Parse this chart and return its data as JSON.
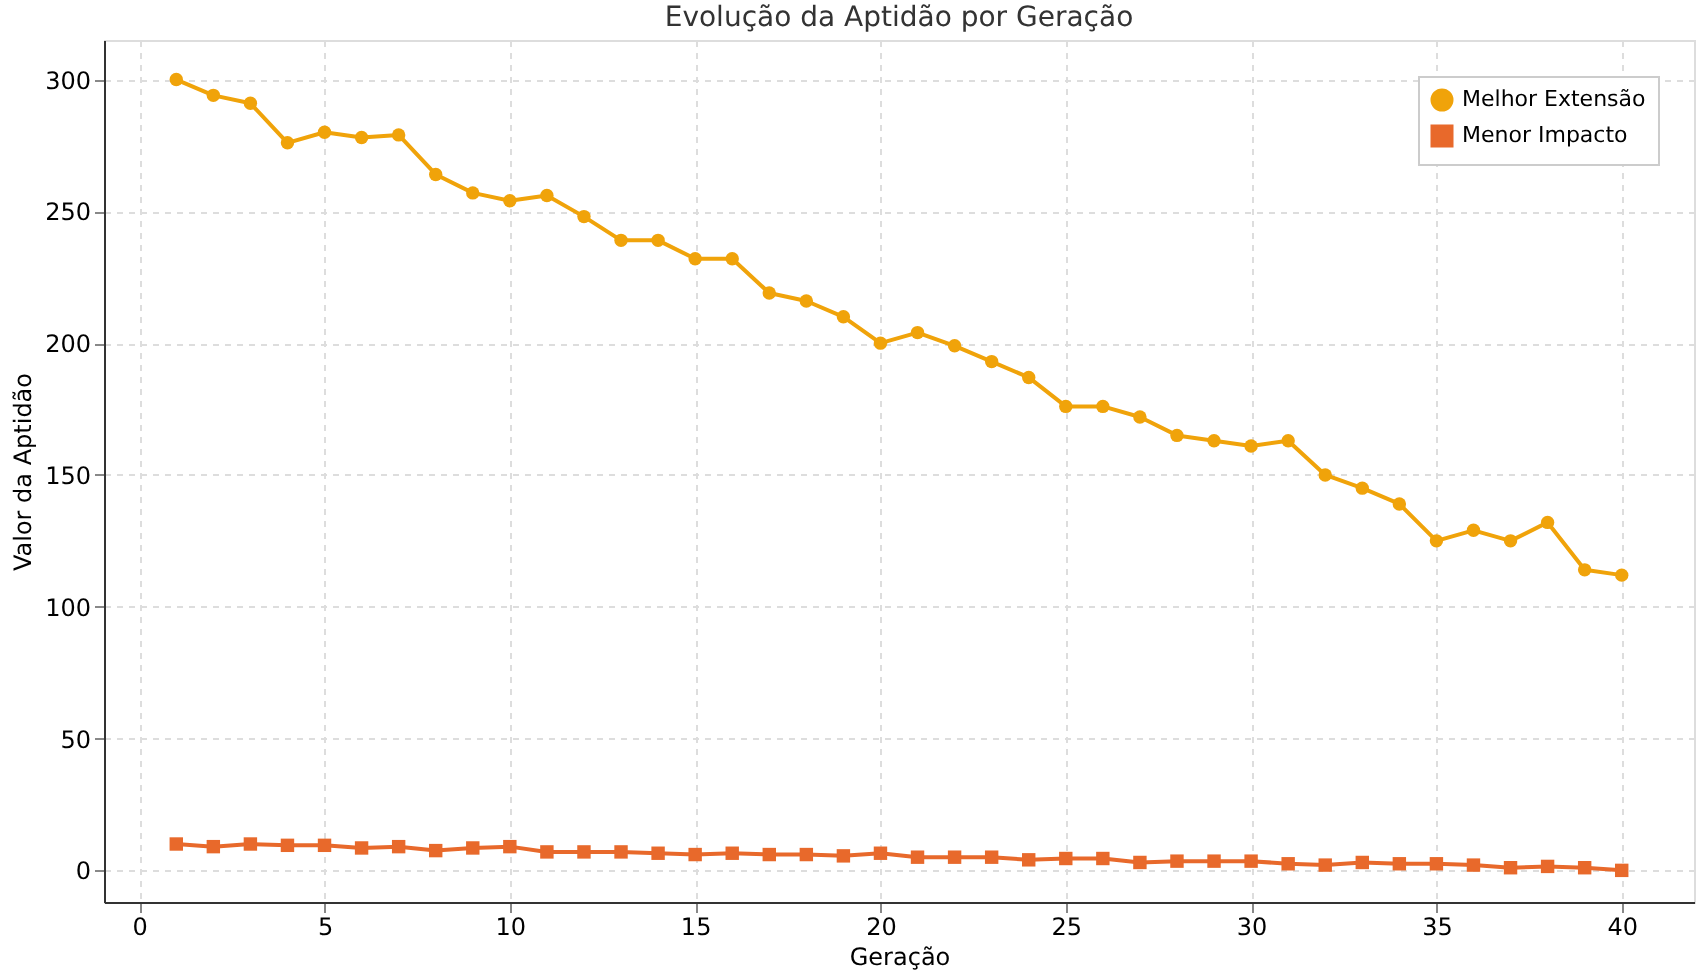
{
  "chart_data": {
    "type": "line",
    "title": "Evolução da Aptidão por Geração",
    "xlabel": "Geração",
    "ylabel": "Valor da Aptidão",
    "x": [
      1,
      2,
      3,
      4,
      5,
      6,
      7,
      8,
      9,
      10,
      11,
      12,
      13,
      14,
      15,
      16,
      17,
      18,
      19,
      20,
      21,
      22,
      23,
      24,
      25,
      26,
      27,
      28,
      29,
      30,
      31,
      32,
      33,
      34,
      35,
      36,
      37,
      38,
      39,
      40
    ],
    "series": [
      {
        "name": "Melhor Extensão",
        "color": "#f0a30a",
        "marker": "circle",
        "values": [
          300,
          294,
          291,
          276,
          280,
          278,
          279,
          264,
          257,
          254,
          256,
          248,
          239,
          239,
          232,
          232,
          219,
          216,
          210,
          200,
          204,
          199,
          193,
          187,
          176,
          176,
          172,
          165,
          163,
          161,
          163,
          150,
          145,
          139,
          125,
          129,
          125,
          132,
          114,
          112
        ]
      },
      {
        "name": "Menor Impacto",
        "color": "#e8692b",
        "marker": "square",
        "values": [
          10,
          9,
          10,
          9.5,
          9.5,
          8.5,
          9,
          7.5,
          8.5,
          9,
          7,
          7,
          7,
          6.5,
          6,
          6.5,
          6,
          6,
          5.5,
          6.5,
          5,
          5,
          5,
          4,
          4.5,
          4.5,
          3,
          3.5,
          3.5,
          3.5,
          2.5,
          2,
          3,
          2.5,
          2.5,
          2,
          1,
          1.5,
          1,
          0
        ]
      }
    ],
    "xlim": [
      -0.95,
      41.95
    ],
    "xticks": [
      0,
      5,
      10,
      15,
      20,
      25,
      30,
      35,
      40
    ],
    "ylim": [
      -12,
      315
    ],
    "yticks": [
      0,
      50,
      100,
      150,
      200,
      250,
      300
    ],
    "grid": true,
    "legend": "top right",
    "line_style": "solid"
  }
}
